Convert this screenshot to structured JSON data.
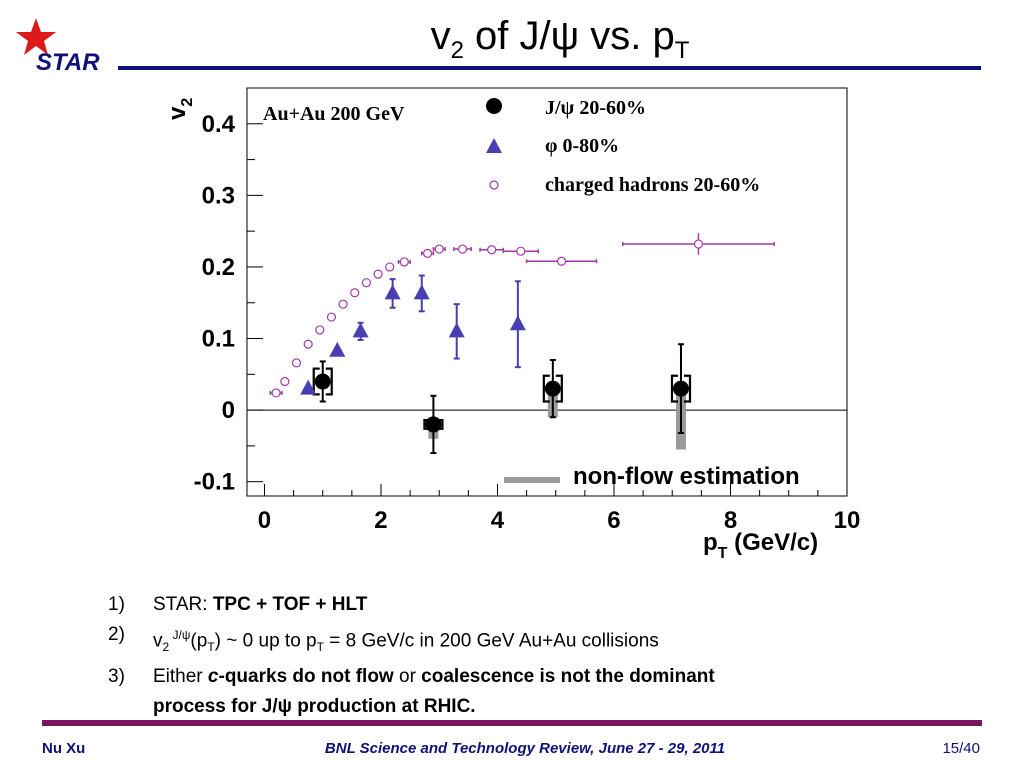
{
  "slide": {
    "logo_text": "STAR",
    "title": {
      "pre": "v",
      "sub1": "2",
      "mid": " of J/ψ vs. p",
      "sub2": "T"
    },
    "notes": [
      {
        "num": "1)",
        "lead": "STAR:  ",
        "bold": "TPC + TOF + HLT"
      },
      {
        "num": "2)",
        "v": "v",
        "v_sub": "2",
        "v_sup": " J/ψ",
        "open": "(p",
        "open_sub": "T",
        "close": ") ~ 0 up to p",
        "close_sub": "T",
        "rest": " = 8 GeV/c in 200 GeV Au+Au collisions"
      },
      {
        "num": "3)",
        "either": "Either ",
        "c": "c",
        "b1": "-quarks do not flow",
        "or": " or ",
        "b2": "coalescence is not the dominant",
        "b3": "process for J/ψ production at RHIC."
      }
    ],
    "footer": {
      "left": "Nu Xu",
      "center": "BNL Science and Technology Review, June 27 - 29, 2011",
      "right": "15/40"
    }
  },
  "colors": {
    "navy": "#10107a",
    "maroon": "#7a1460",
    "star_red": "#dd1a1a",
    "jpsi": "#000000",
    "phi": "#4a3fb2",
    "hadron": "#a23aa6",
    "nonflow": "#9a9a9a"
  },
  "chart_data": {
    "type": "scatter",
    "title": "",
    "xlabel": "p_T (GeV/c)",
    "ylabel": "v_2",
    "xlim": [
      -0.3,
      10
    ],
    "ylim": [
      -0.12,
      0.45
    ],
    "xticks": [
      0,
      2,
      4,
      6,
      8,
      10
    ],
    "yticks": [
      -0.1,
      0,
      0.1,
      0.2,
      0.3,
      0.4
    ],
    "grid": false,
    "annotation": "Au+Au 200 GeV",
    "legend_position": "top-right",
    "nonflow_label": "non-flow estimation",
    "series": [
      {
        "name": "J/ψ 20-60%",
        "marker": "filled-circle",
        "points": [
          {
            "x": 1.0,
            "y": 0.04,
            "yerr": 0.028,
            "sys": 0.018,
            "nonflow": [
              0.03,
              0.04
            ]
          },
          {
            "x": 2.9,
            "y": -0.02,
            "yerr": 0.04,
            "sys": 0.006,
            "nonflow": [
              -0.04,
              -0.02
            ]
          },
          {
            "x": 4.95,
            "y": 0.03,
            "yerr": 0.04,
            "sys": 0.018,
            "nonflow": [
              -0.01,
              0.03
            ]
          },
          {
            "x": 7.15,
            "y": 0.03,
            "yerr": 0.062,
            "sys": 0.018,
            "nonflow": [
              -0.055,
              0.03
            ]
          }
        ]
      },
      {
        "name": "φ 0-80%",
        "marker": "filled-triangle",
        "points": [
          {
            "x": 0.75,
            "y": 0.03,
            "yerr": 0.0
          },
          {
            "x": 1.25,
            "y": 0.083,
            "yerr": 0.0
          },
          {
            "x": 1.65,
            "y": 0.11,
            "yerr": 0.012
          },
          {
            "x": 2.2,
            "y": 0.163,
            "yerr": 0.02
          },
          {
            "x": 2.7,
            "y": 0.163,
            "yerr": 0.025
          },
          {
            "x": 3.3,
            "y": 0.11,
            "yerr": 0.038
          },
          {
            "x": 4.35,
            "y": 0.12,
            "yerr": 0.06
          }
        ]
      },
      {
        "name": "charged hadrons 20-60%",
        "marker": "open-circle",
        "points": [
          {
            "x": 0.2,
            "y": 0.024,
            "xerr": 0.1
          },
          {
            "x": 0.35,
            "y": 0.04,
            "xerr": 0.05
          },
          {
            "x": 0.55,
            "y": 0.066,
            "xerr": 0.05
          },
          {
            "x": 0.75,
            "y": 0.092,
            "xerr": 0.05
          },
          {
            "x": 0.95,
            "y": 0.112,
            "xerr": 0.05
          },
          {
            "x": 1.15,
            "y": 0.13,
            "xerr": 0.05
          },
          {
            "x": 1.35,
            "y": 0.148,
            "xerr": 0.05
          },
          {
            "x": 1.55,
            "y": 0.164,
            "xerr": 0.05
          },
          {
            "x": 1.75,
            "y": 0.178,
            "xerr": 0.05
          },
          {
            "x": 1.95,
            "y": 0.19,
            "xerr": 0.05
          },
          {
            "x": 2.15,
            "y": 0.2,
            "xerr": 0.05
          },
          {
            "x": 2.4,
            "y": 0.207,
            "xerr": 0.1
          },
          {
            "x": 2.8,
            "y": 0.219,
            "xerr": 0.1
          },
          {
            "x": 3.0,
            "y": 0.225,
            "xerr": 0.1
          },
          {
            "x": 3.4,
            "y": 0.225,
            "xerr": 0.15
          },
          {
            "x": 3.9,
            "y": 0.224,
            "xerr": 0.2
          },
          {
            "x": 4.4,
            "y": 0.222,
            "xerr": 0.3
          },
          {
            "x": 5.1,
            "y": 0.208,
            "xerr": 0.6
          },
          {
            "x": 7.45,
            "y": 0.232,
            "xerr": 1.3,
            "yerr": 0.015
          }
        ]
      }
    ]
  }
}
